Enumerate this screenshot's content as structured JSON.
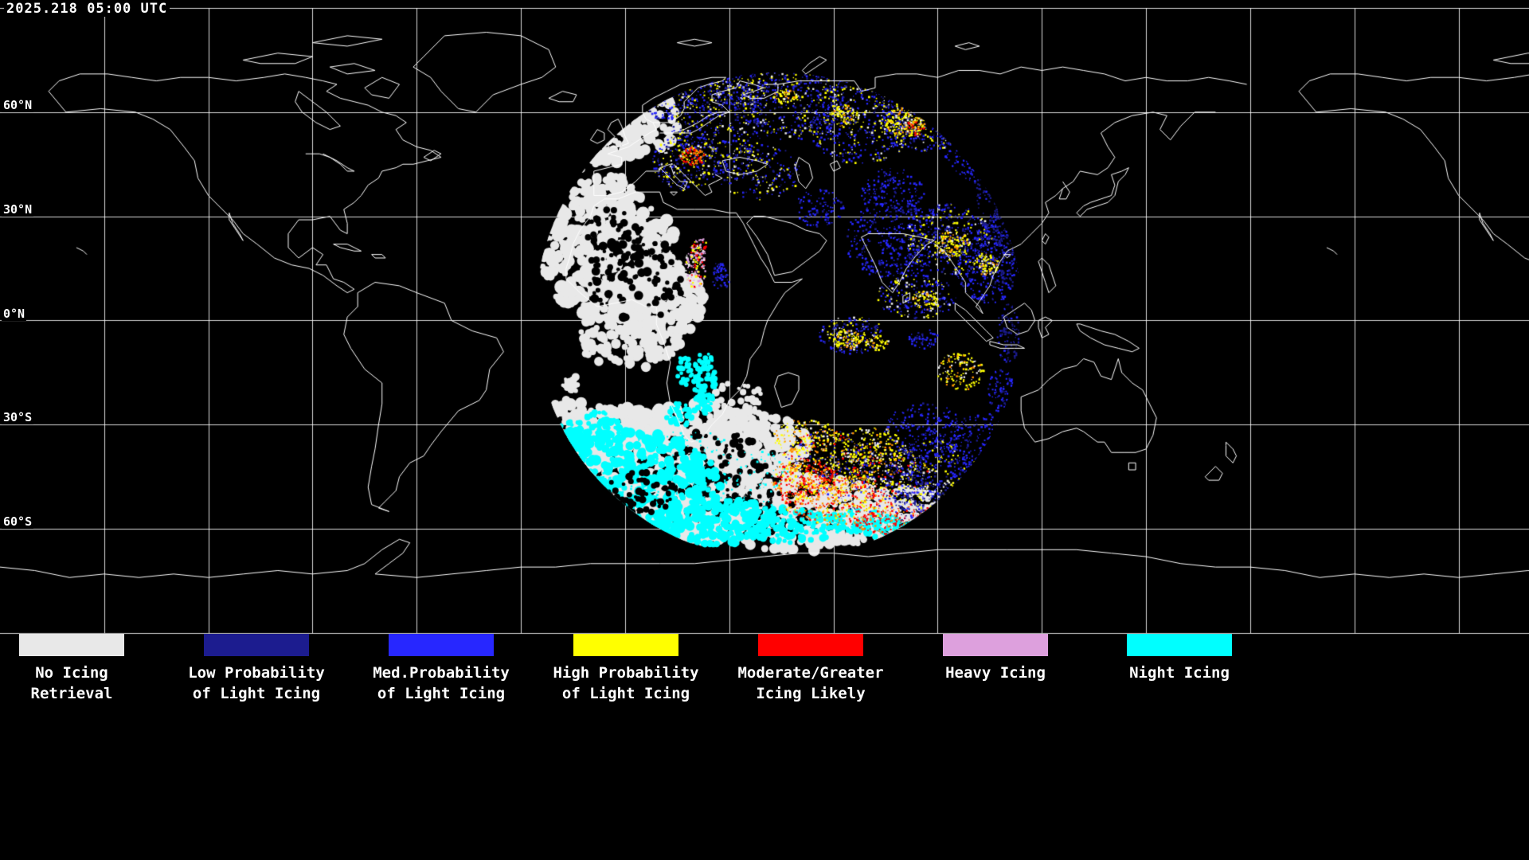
{
  "header": {
    "timestamp": "2025.218 05:00 UTC"
  },
  "map": {
    "latitude_labels": [
      "60°N",
      "30°N",
      "0°N",
      "30°S",
      "60°S"
    ],
    "colors": {
      "background": "#000000",
      "coastline": "#ffffff",
      "gridline": "#cccccc",
      "orange_mix": "#ff9100"
    }
  },
  "legend": {
    "items": [
      {
        "id": "no-icing-retrieval",
        "line1": "No Icing",
        "line2": "Retrieval",
        "color": "#e8e8e8"
      },
      {
        "id": "low-probability-light-icing",
        "line1": "Low Probability",
        "line2": "of Light Icing",
        "color": "#1c1c8f"
      },
      {
        "id": "med-probability-light-icing",
        "line1": "Med.Probability",
        "line2": "of Light Icing",
        "color": "#2727ff"
      },
      {
        "id": "high-probability-light-icing",
        "line1": "High Probability",
        "line2": "of Light Icing",
        "color": "#ffff00"
      },
      {
        "id": "moderate-greater-icing-likely",
        "line1": "Moderate/Greater",
        "line2": "Icing Likely",
        "color": "#ff0000"
      },
      {
        "id": "heavy-icing",
        "line1": "Heavy Icing",
        "line2": "",
        "color": "#dda0dd"
      },
      {
        "id": "night-icing",
        "line1": "Night Icing",
        "line2": "",
        "color": "#00ffff"
      }
    ]
  }
}
